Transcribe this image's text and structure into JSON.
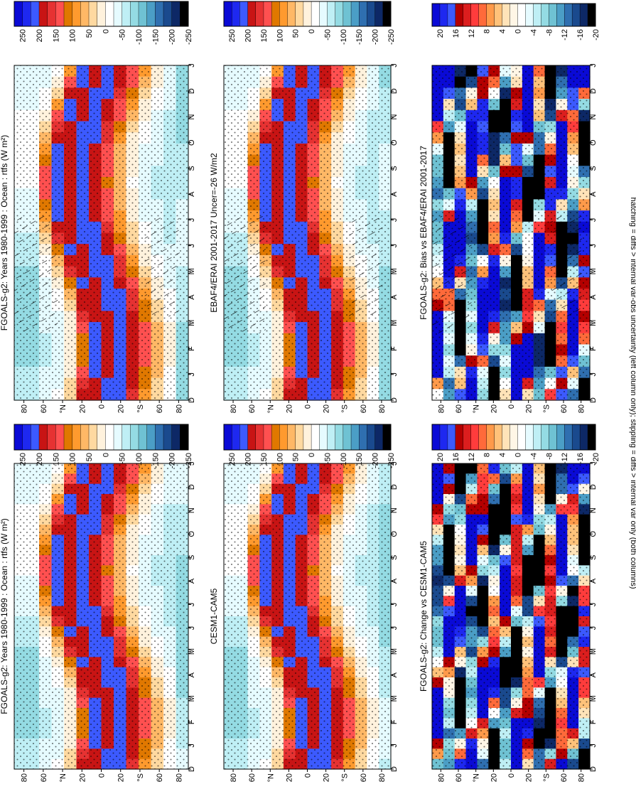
{
  "caption": "hatching = diffs > internal var-obs uncertainty (left column only); stippling = diffs > internal var only (both columns)",
  "colors": {
    "abs_scale": [
      "#0a0ad6",
      "#1e28f0",
      "#3c5aff",
      "#c81414",
      "#e63232",
      "#ff5050",
      "#e07800",
      "#ff9a2e",
      "#ffb866",
      "#ffd9a0",
      "#fff2dd",
      "#ffffff",
      "#e6fbff",
      "#bfeff5",
      "#94dbe3",
      "#6fc2d3",
      "#4b9ec6",
      "#2f6fb0",
      "#1a4a8e",
      "#0d2866",
      "#000000"
    ],
    "diff_scale": [
      "#0a0ad6",
      "#1e28f0",
      "#3c5aff",
      "#b40000",
      "#dc1e1e",
      "#ff3c3c",
      "#ff6a3a",
      "#ff9a4a",
      "#ffc27a",
      "#ffe3b8",
      "#fff6e6",
      "#ffffff",
      "#e6fbff",
      "#bfeff5",
      "#94dbe3",
      "#6fc2d3",
      "#4b9ec6",
      "#2f6fb0",
      "#1a4a8e",
      "#0d2866",
      "#000000"
    ]
  },
  "chart_data": [
    {
      "id": "p1",
      "type": "heatmap",
      "title": "FGOALS-g2: Years 1980-1999 : Ocean : rtfs (W m²)",
      "x": [
        "D",
        "J",
        "F",
        "M",
        "A",
        "M",
        "J",
        "J",
        "A",
        "S",
        "O",
        "N",
        "D",
        "J"
      ],
      "y_ticks": [
        "80",
        "60",
        "°N",
        "20",
        "0",
        "20",
        "°S",
        "60",
        "80"
      ],
      "colorbar_ticks": [
        "250",
        "200",
        "150",
        "100",
        "50",
        "0",
        "-50",
        "-100",
        "-150",
        "-200",
        "-250"
      ],
      "z_range": [
        -250,
        250
      ],
      "stippling": true,
      "hatching": true
    },
    {
      "id": "p2",
      "type": "heatmap",
      "title": "EBAF4/ERAI 2001-2017 Uncer=-26 W/m2",
      "x": [
        "D",
        "J",
        "F",
        "M",
        "A",
        "M",
        "J",
        "J",
        "A",
        "S",
        "O",
        "N",
        "D",
        "J"
      ],
      "y_ticks": [
        "80",
        "60",
        "°N",
        "20",
        "0",
        "20",
        "°S",
        "60",
        "80"
      ],
      "colorbar_ticks": [
        "250",
        "200",
        "150",
        "100",
        "50",
        "0",
        "-50",
        "-100",
        "-150",
        "-200",
        "-250"
      ],
      "z_range": [
        -250,
        250
      ],
      "stippling": true,
      "hatching": true
    },
    {
      "id": "p3",
      "type": "heatmap",
      "title": "FGOALS-g2: Bias vs EBAF4/ERAI 2001-2017",
      "x": [
        "D",
        "J",
        "F",
        "M",
        "A",
        "M",
        "J",
        "J",
        "A",
        "S",
        "O",
        "N",
        "D",
        "J"
      ],
      "y_ticks": [
        "80",
        "60",
        "°N",
        "20",
        "0",
        "20",
        "°S",
        "60",
        "80"
      ],
      "colorbar_ticks": [
        "20",
        "16",
        "12",
        "8",
        "4",
        "0",
        "-4",
        "-8",
        "-12",
        "-16",
        "-20"
      ],
      "z_range": [
        -20,
        20
      ],
      "stippling": true,
      "hatching": true
    },
    {
      "id": "p4",
      "type": "heatmap",
      "title": "FGOALS-g2: Years 1980-1999 : Ocean : rtfs (W m²)",
      "x": [
        "D",
        "J",
        "F",
        "M",
        "A",
        "M",
        "J",
        "J",
        "A",
        "S",
        "O",
        "N",
        "D",
        "J"
      ],
      "y_ticks": [
        "80",
        "60",
        "°N",
        "20",
        "0",
        "20",
        "°S",
        "60",
        "80"
      ],
      "colorbar_ticks": [
        "250",
        "200",
        "150",
        "100",
        "50",
        "0",
        "-50",
        "-100",
        "-150",
        "-200",
        "-250"
      ],
      "z_range": [
        -250,
        250
      ],
      "stippling": true,
      "hatching": false
    },
    {
      "id": "p5",
      "type": "heatmap",
      "title": "CESM1-CAM5",
      "x": [
        "D",
        "J",
        "F",
        "M",
        "A",
        "M",
        "J",
        "J",
        "A",
        "S",
        "O",
        "N",
        "D",
        "J"
      ],
      "y_ticks": [
        "80",
        "60",
        "°N",
        "20",
        "0",
        "20",
        "°S",
        "60",
        "80"
      ],
      "colorbar_ticks": [
        "250",
        "200",
        "150",
        "100",
        "50",
        "0",
        "-50",
        "-100",
        "-150",
        "-200",
        "-250"
      ],
      "z_range": [
        -250,
        250
      ],
      "stippling": true,
      "hatching": false
    },
    {
      "id": "p6",
      "type": "heatmap",
      "title": "FGOALS-g2: Change vs CESM1-CAM5",
      "x": [
        "D",
        "J",
        "F",
        "M",
        "A",
        "M",
        "J",
        "J",
        "A",
        "S",
        "O",
        "N",
        "D",
        "J"
      ],
      "y_ticks": [
        "80",
        "60",
        "°N",
        "20",
        "0",
        "20",
        "°S",
        "60",
        "80"
      ],
      "colorbar_ticks": [
        "20",
        "16",
        "12",
        "8",
        "4",
        "0",
        "-4",
        "-8",
        "-12",
        "-16",
        "-20"
      ],
      "z_range": [
        -20,
        20
      ],
      "stippling": true,
      "hatching": false
    }
  ]
}
